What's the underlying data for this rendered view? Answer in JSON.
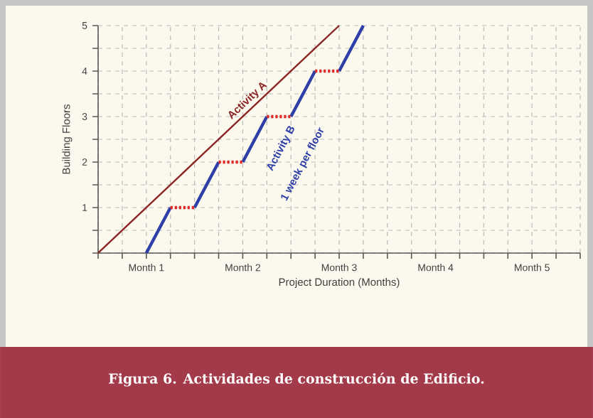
{
  "chart_data": {
    "type": "line",
    "title": "Figura 6. Actividades de construcción de Edificio.",
    "xlabel": "Project Duration (Months)",
    "ylabel": "Building Floors",
    "categories": [
      null,
      null,
      "Month 1",
      null,
      null,
      null,
      "Month 2",
      null,
      null,
      null,
      "Month 3",
      null,
      null,
      null,
      "Month 4",
      null,
      null,
      null,
      "Month 5",
      null,
      null
    ],
    "ylim": [
      0,
      5
    ],
    "yticks": [
      {
        "value": 0,
        "label": null
      },
      {
        "value": 0.5,
        "label": null
      },
      1,
      {
        "value": 1.5,
        "label": null
      },
      2,
      {
        "value": 2.5,
        "label": null
      },
      3,
      {
        "value": 3.5,
        "label": null
      },
      4,
      {
        "value": 4.5,
        "label": null
      },
      5
    ],
    "grid": true,
    "marker": "none",
    "series": [
      {
        "name": "Activity A",
        "color": "#8b2525",
        "line_style": "solid",
        "values": [
          0,
          0.5,
          1,
          1.5,
          2,
          2.5,
          3,
          3.5,
          4,
          4.5,
          5,
          null,
          null,
          null,
          null,
          null,
          null,
          null,
          null,
          null,
          null
        ]
      },
      {
        "color": "#2f3fa8",
        "line_style": "solid",
        "values": [
          null,
          null,
          0,
          1,
          null,
          null,
          null,
          null,
          null,
          null,
          null,
          null,
          null,
          null,
          null,
          null,
          null,
          null,
          null,
          null,
          null
        ]
      },
      {
        "color": "#2f3fa8",
        "line_style": "solid",
        "values": [
          null,
          null,
          null,
          null,
          1,
          2,
          null,
          null,
          null,
          null,
          null,
          null,
          null,
          null,
          null,
          null,
          null,
          null,
          null,
          null,
          null
        ]
      },
      {
        "name": "Activity B",
        "color": "#2f3fa8",
        "line_style": "solid",
        "values": [
          null,
          null,
          null,
          null,
          null,
          null,
          2,
          3,
          null,
          null,
          null,
          null,
          null,
          null,
          null,
          null,
          null,
          null,
          null,
          null,
          null
        ]
      },
      {
        "color": "#2f3fa8",
        "line_style": "solid",
        "values": [
          null,
          null,
          null,
          null,
          null,
          null,
          null,
          null,
          3,
          4,
          null,
          null,
          null,
          null,
          null,
          null,
          null,
          null,
          null,
          null,
          null
        ]
      },
      {
        "color": "#2f3fa8",
        "line_style": "solid",
        "values": [
          null,
          null,
          null,
          null,
          null,
          null,
          null,
          null,
          null,
          null,
          4,
          5,
          null,
          null,
          null,
          null,
          null,
          null,
          null,
          null,
          null
        ]
      },
      {
        "color": "#e02828",
        "line_style": "dotted",
        "values": [
          null,
          null,
          null,
          1,
          1,
          null,
          null,
          null,
          null,
          null,
          null,
          null,
          null,
          null,
          null,
          null,
          null,
          null,
          null,
          null,
          null
        ]
      },
      {
        "color": "#e02828",
        "line_style": "dotted",
        "values": [
          null,
          null,
          null,
          null,
          null,
          2,
          2,
          null,
          null,
          null,
          null,
          null,
          null,
          null,
          null,
          null,
          null,
          null,
          null,
          null,
          null
        ]
      },
      {
        "color": "#e02828",
        "line_style": "dotted",
        "values": [
          null,
          null,
          null,
          null,
          null,
          null,
          null,
          3,
          3,
          null,
          null,
          null,
          null,
          null,
          null,
          null,
          null,
          null,
          null,
          null,
          null
        ]
      },
      {
        "color": "#e02828",
        "line_style": "dotted",
        "values": [
          null,
          null,
          null,
          null,
          null,
          null,
          null,
          null,
          null,
          4,
          4,
          null,
          null,
          null,
          null,
          null,
          null,
          null,
          null,
          null,
          null
        ]
      }
    ],
    "annotations": [
      "1 week per floor"
    ]
  }
}
